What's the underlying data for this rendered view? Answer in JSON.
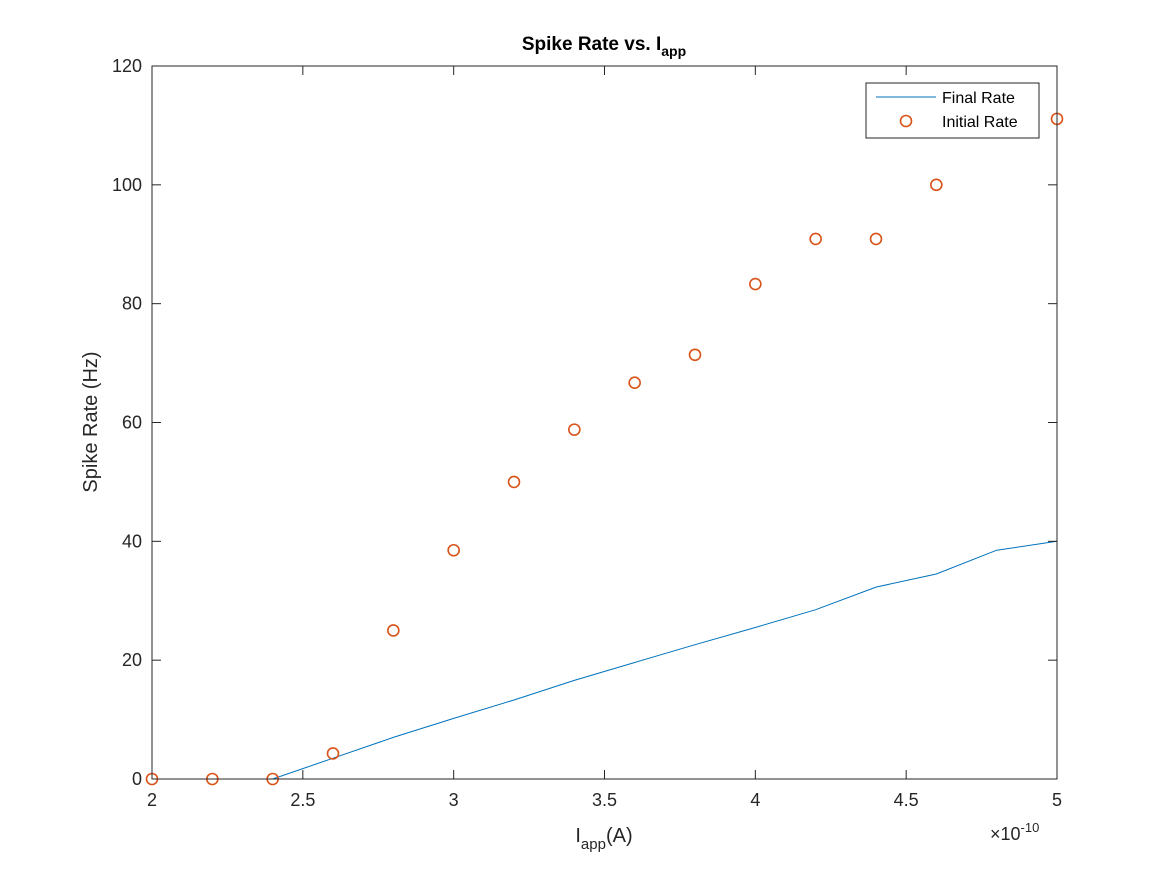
{
  "chart_data": {
    "type": "line",
    "title": "Spike Rate vs. I",
    "title_subscript": "app",
    "xlabel": "I",
    "xlabel_subscript": "app",
    "xlabel_unit": "(A)",
    "ylabel": "Spike Rate (Hz)",
    "x_exponent_prefix": "×10",
    "x_exponent_power": "-10",
    "xlim": [
      2,
      5
    ],
    "ylim": [
      0,
      120
    ],
    "x_scale_note": "x values in units of 1e-10 A",
    "xticks": [
      2,
      2.5,
      3,
      3.5,
      4,
      4.5,
      5
    ],
    "xtick_labels": [
      "2",
      "2.5",
      "3",
      "3.5",
      "4",
      "4.5",
      "5"
    ],
    "yticks": [
      0,
      20,
      40,
      60,
      80,
      100,
      120
    ],
    "ytick_labels": [
      "0",
      "20",
      "40",
      "60",
      "80",
      "100",
      "120"
    ],
    "grid": false,
    "legend_position": "top-right",
    "series": [
      {
        "name": "Final Rate",
        "kind": "line",
        "color": "#0072BD",
        "x": [
          2,
          2.2,
          2.4,
          2.6,
          2.8,
          3,
          3.2,
          3.4,
          3.6,
          3.8,
          4,
          4.2,
          4.4,
          4.6,
          4.8,
          5
        ],
        "y": [
          0,
          0,
          0,
          3.5,
          7,
          10.2,
          13.3,
          16.6,
          19.6,
          22.6,
          25.5,
          28.5,
          32.3,
          34.5,
          38.5,
          40
        ]
      },
      {
        "name": "Initial Rate",
        "kind": "scatter",
        "marker": "circle",
        "color": "#D95319",
        "x": [
          2,
          2.2,
          2.4,
          2.6,
          2.8,
          3,
          3.2,
          3.4,
          3.6,
          3.8,
          4,
          4.2,
          4.4,
          4.6,
          5
        ],
        "y": [
          0,
          0,
          0,
          4.3,
          25,
          38.5,
          50,
          58.8,
          66.7,
          71.4,
          83.3,
          90.9,
          90.9,
          100,
          111.1
        ]
      }
    ]
  }
}
